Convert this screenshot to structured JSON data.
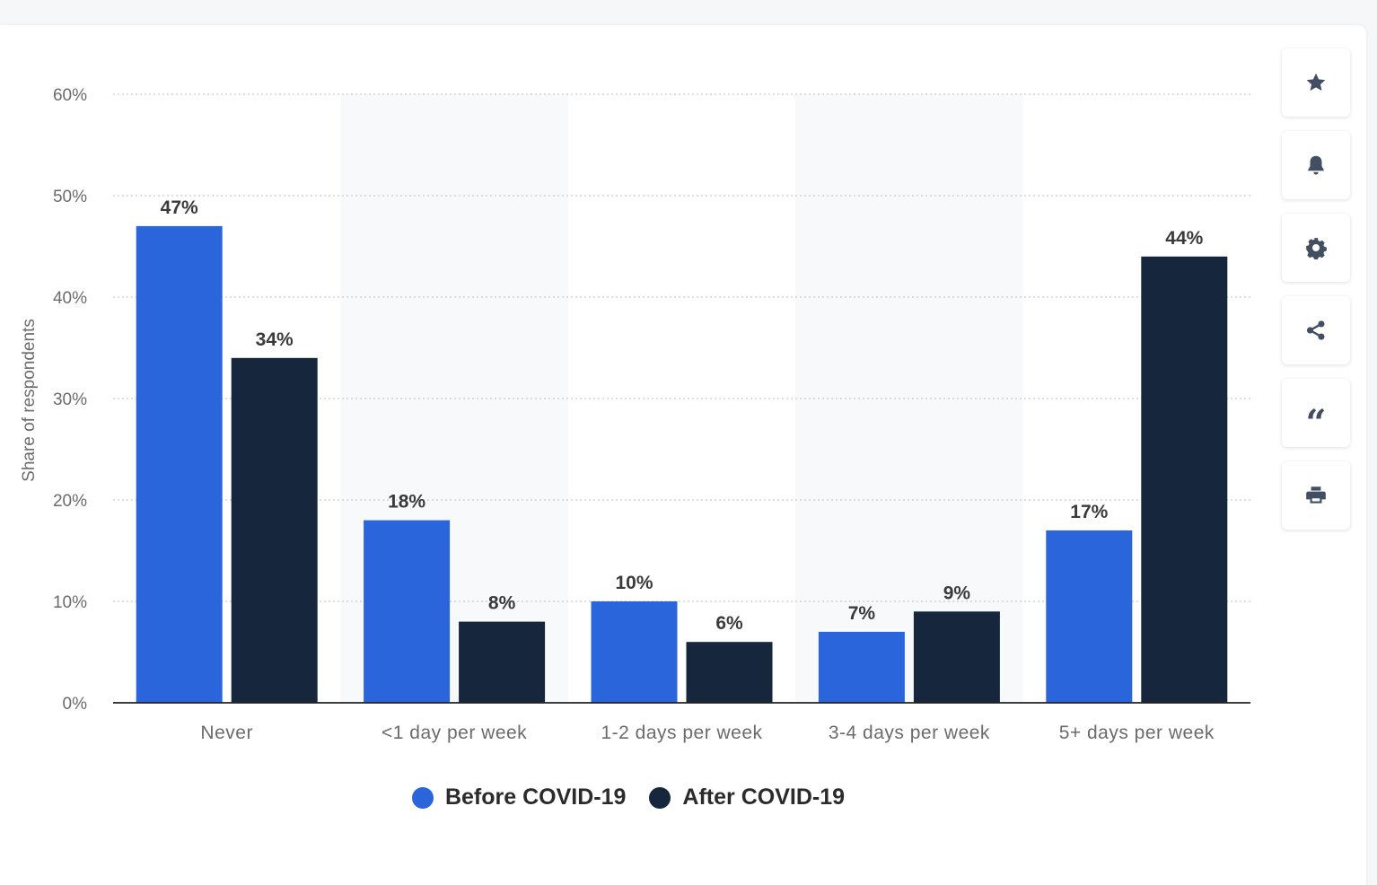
{
  "colors": {
    "before": "#2b65db",
    "after": "#16263d",
    "band": "#f8f9fa",
    "grid": "#c9c9c9",
    "axis_text": "#6b6b6b",
    "label_text": "#3a3a3a",
    "icon": "#424e61"
  },
  "toolbar": {
    "items": [
      {
        "icon": "star-icon"
      },
      {
        "icon": "bell-icon"
      },
      {
        "icon": "gear-icon"
      },
      {
        "icon": "share-icon"
      },
      {
        "icon": "quote-icon",
        "glyph": "“"
      },
      {
        "icon": "print-icon"
      }
    ]
  },
  "chart_data": {
    "type": "bar",
    "title": "",
    "xlabel": "",
    "ylabel": "Share of respondents",
    "ylim": [
      0,
      60
    ],
    "yticks": [
      "0%",
      "10%",
      "20%",
      "30%",
      "40%",
      "50%",
      "60%"
    ],
    "categories": [
      "Never",
      "<1 day per week",
      "1-2 days per week",
      "3-4 days per week",
      "5+ days per week"
    ],
    "series": [
      {
        "name": "Before COVID-19",
        "values": [
          47,
          18,
          10,
          7,
          17
        ],
        "labels": [
          "47%",
          "18%",
          "10%",
          "7%",
          "17%"
        ]
      },
      {
        "name": "After COVID-19",
        "values": [
          34,
          8,
          6,
          9,
          44
        ],
        "labels": [
          "34%",
          "8%",
          "6%",
          "9%",
          "44%"
        ]
      }
    ],
    "grid": true,
    "legend": "bottom-center"
  }
}
